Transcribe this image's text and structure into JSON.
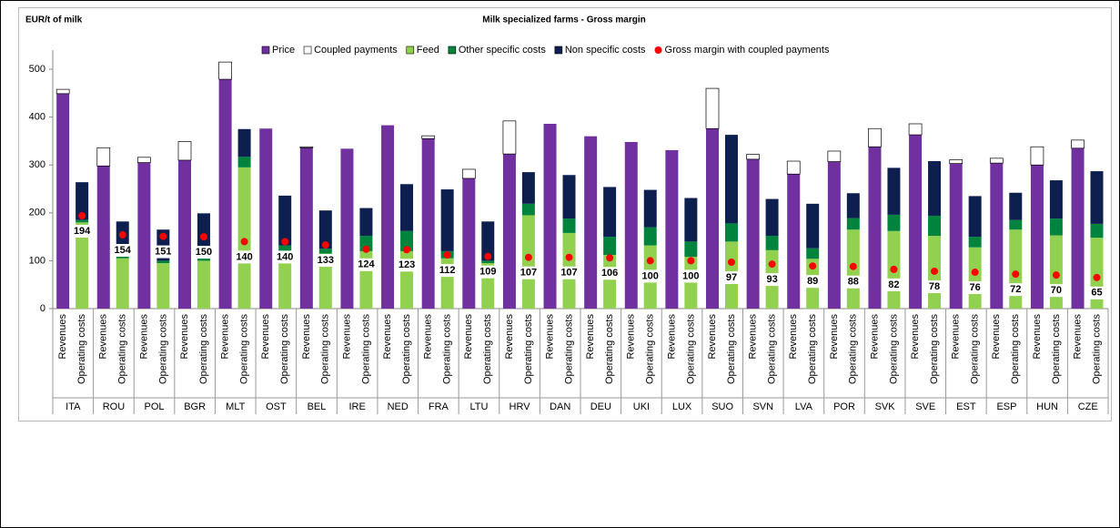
{
  "chart_data": {
    "type": "bar",
    "title": "Milk specialized farms  - Gross margin",
    "y_label": "EUR/t of milk",
    "categories": [
      "ITA",
      "ROU",
      "POL",
      "BGR",
      "MLT",
      "OST",
      "BEL",
      "IRE",
      "NED",
      "FRA",
      "LTU",
      "HRV",
      "DAN",
      "DEU",
      "UKI",
      "LUX",
      "SUO",
      "SVN",
      "LVA",
      "POR",
      "SVK",
      "SVE",
      "EST",
      "ESP",
      "HUN",
      "CZE"
    ],
    "bars": [
      {
        "label": "Revenues",
        "series": [
          {
            "name": "Price",
            "color": "#7030a0",
            "values": [
              449,
              298,
              305,
              310,
              479,
              376,
              336,
              334,
              383,
              355,
              272,
              323,
              386,
              360,
              348,
              331,
              376,
              312,
              281,
              307,
              338,
              363,
              303,
              304,
              300,
              335
            ]
          },
          {
            "name": "Coupled payments",
            "color": "#ffffff",
            "values": [
              9,
              38,
              11,
              39,
              36,
              0,
              2,
              0,
              0,
              6,
              19,
              69,
              0,
              0,
              0,
              0,
              84,
              10,
              27,
              22,
              38,
              23,
              8,
              10,
              38,
              17
            ]
          }
        ]
      },
      {
        "label": "Operating costs",
        "series": [
          {
            "name": "Feed",
            "color": "#92d050",
            "values": [
              180,
              105,
              95,
              100,
              295,
              120,
              115,
              120,
              120,
              105,
              95,
              195,
              158,
              112,
              132,
              108,
              140,
              122,
              104,
              165,
              162,
              152,
              128,
              165,
              153,
              148
            ]
          },
          {
            "name": "Other specific costs",
            "color": "#00843d",
            "values": [
              5,
              5,
              5,
              5,
              22,
              12,
              10,
              32,
              42,
              15,
              5,
              24,
              30,
              38,
              38,
              32,
              38,
              30,
              22,
              24,
              34,
              42,
              22,
              20,
              35,
              29
            ]
          },
          {
            "name": "Non specific costs",
            "color": "#0c1f4f",
            "values": [
              79,
              72,
              65,
              94,
              58,
              104,
              80,
              58,
              98,
              129,
              82,
              66,
              91,
              104,
              78,
              91,
              185,
              77,
              93,
              52,
              98,
              114,
              85,
              57,
              80,
              110
            ]
          }
        ]
      }
    ],
    "margin": {
      "name": "Gross margin with coupled payments",
      "color": "#ff0000",
      "values": [
        194,
        154,
        151,
        150,
        140,
        140,
        133,
        124,
        123,
        112,
        109,
        107,
        107,
        106,
        100,
        100,
        97,
        93,
        89,
        88,
        82,
        78,
        76,
        72,
        70,
        65
      ]
    },
    "ylim": [
      0,
      540
    ],
    "yticks": [
      0,
      100,
      200,
      300,
      400,
      500
    ]
  }
}
